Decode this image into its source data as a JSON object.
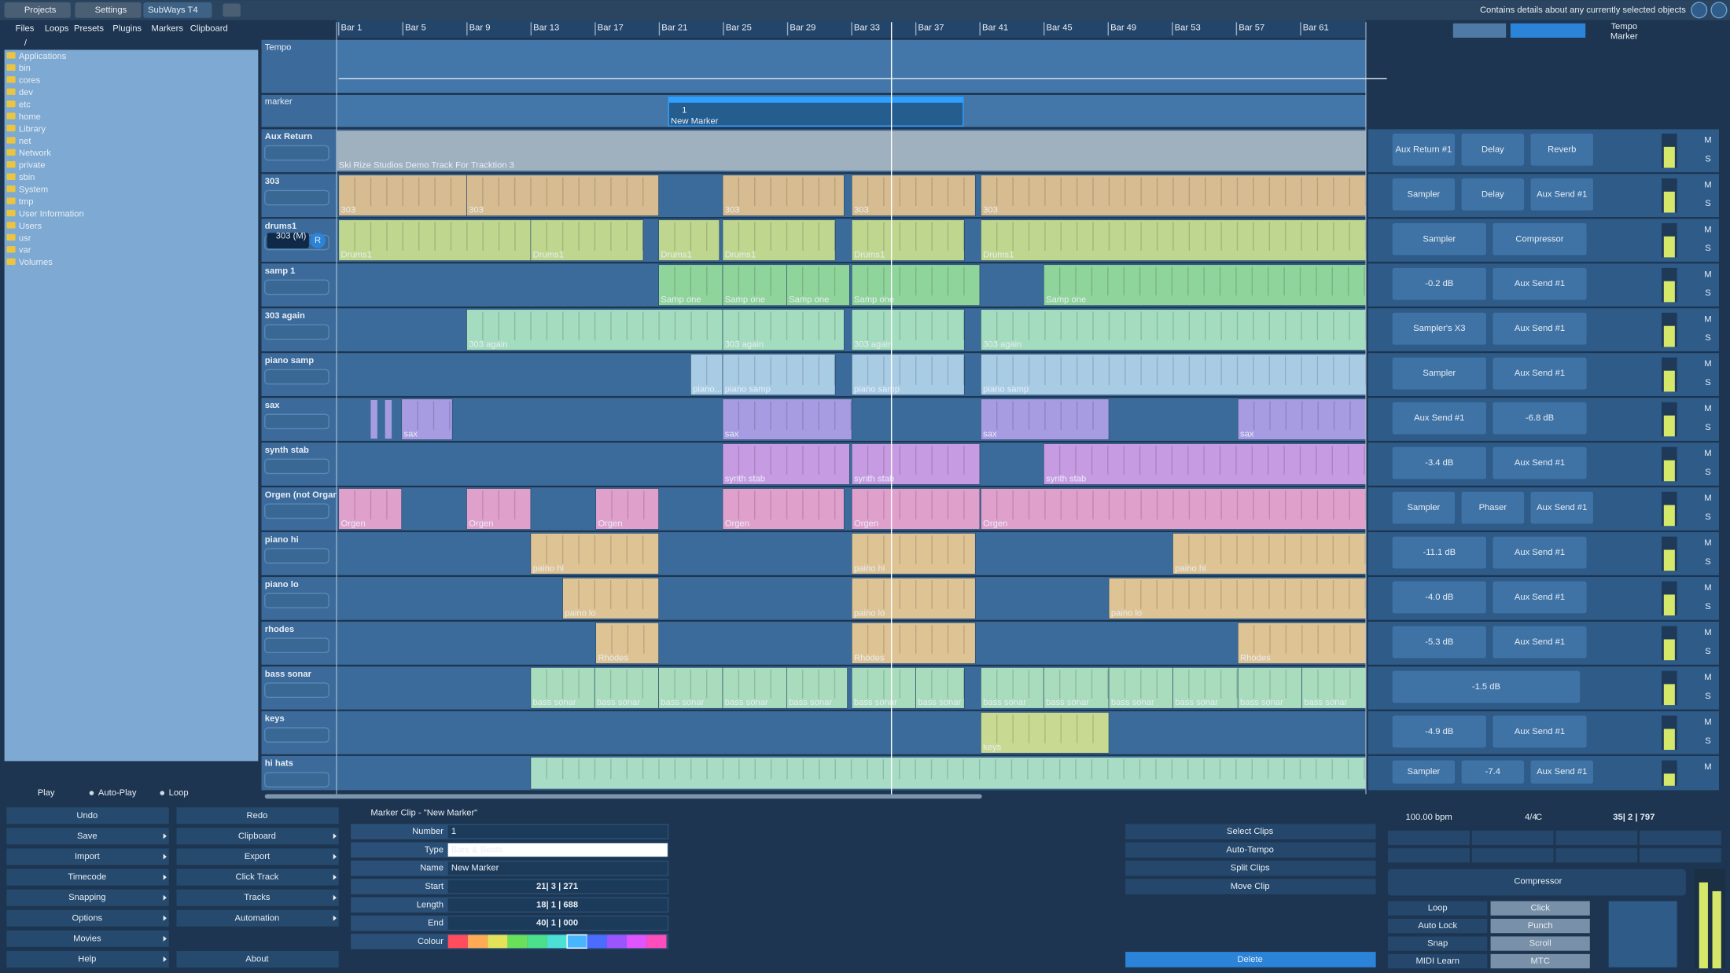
{
  "tabs": [
    "Projects",
    "Settings",
    "SubWays T4"
  ],
  "menu": [
    "Files",
    "Loops",
    "Presets",
    "Plugins",
    "Markers",
    "Clipboard"
  ],
  "status": "Contains details about any currently selected objects",
  "path": "/",
  "folders": [
    "Applications",
    "bin",
    "cores",
    "dev",
    "etc",
    "home",
    "Library",
    "net",
    "Network",
    "private",
    "sbin",
    "System",
    "tmp",
    "User Information",
    "Users",
    "usr",
    "var",
    "Volumes"
  ],
  "play_options": [
    "Play",
    "Auto-Play",
    "Loop"
  ],
  "buttons": [
    [
      "Undo",
      "Redo"
    ],
    [
      "Save",
      "Clipboard"
    ],
    [
      "Import",
      "Export"
    ],
    [
      "Timecode",
      "Click Track"
    ],
    [
      "Snapping",
      "Tracks"
    ],
    [
      "Options",
      "Automation"
    ],
    [
      "Movies"
    ],
    [
      "Help",
      "About"
    ]
  ],
  "ruler": [
    "Bar 1",
    "Bar 5",
    "Bar 9",
    "Bar 13",
    "Bar 17",
    "Bar 21",
    "Bar 25",
    "Bar 29",
    "Bar 33",
    "Bar 37",
    "Bar 41",
    "Bar 45",
    "Bar 49",
    "Bar 53",
    "Bar 57",
    "Bar 61"
  ],
  "view_toggles": [
    "Tempo",
    "Marker"
  ],
  "tempo_track": "Tempo",
  "marker_track": {
    "name": "marker",
    "number": "1",
    "clip": "New Marker"
  },
  "mute": "M",
  "solo": "S",
  "drums_meter": "303 (M)",
  "record": "R",
  "tracks": [
    {
      "name": "Aux Return",
      "clips": [
        "Ski Rize Studios Demo Track For Tracktion 3"
      ],
      "plugins": [
        "Aux Return #1",
        "Delay",
        "Reverb"
      ]
    },
    {
      "name": "303",
      "clips": [
        "303",
        "303",
        "303",
        "303",
        "303"
      ],
      "plugins": [
        "Sampler",
        "Delay",
        "Aux Send #1"
      ]
    },
    {
      "name": "drums1",
      "clips": [
        "Drums1",
        "Drums1",
        "Drums1",
        "Drums1",
        "Drums1",
        "Drums1"
      ],
      "plugins": [
        "Sampler",
        "Compressor"
      ]
    },
    {
      "name": "samp 1",
      "clips": [
        "Samp one",
        "Samp one",
        "Samp one",
        "Samp one",
        "Samp one"
      ],
      "plugins": [
        "-0.2 dB",
        "Aux Send #1"
      ]
    },
    {
      "name": "303 again",
      "clips": [
        "303 again",
        "303 again",
        "303 again",
        "303 again"
      ],
      "plugins": [
        "Sampler's X3",
        "Aux Send #1"
      ]
    },
    {
      "name": "piano samp",
      "clips": [
        "piano...",
        "piano samp",
        "piano samp",
        "piano samp"
      ],
      "plugins": [
        "Sampler",
        "Aux Send #1"
      ]
    },
    {
      "name": "sax",
      "clips": [
        "sax",
        "sax",
        "sax",
        "sax"
      ],
      "plugins": [
        "Aux Send #1",
        "-6.8 dB"
      ]
    },
    {
      "name": "synth stab",
      "clips": [
        "synth stab",
        "synth stab",
        "synth stab"
      ],
      "plugins": [
        "-3.4 dB",
        "Aux Send #1"
      ]
    },
    {
      "name": "Orgen (not Organ)",
      "clips": [
        "Orgen",
        "Orgen",
        "Orgen",
        "Orgen",
        "Orgen",
        "Orgen"
      ],
      "plugins": [
        "Sampler",
        "Phaser",
        "Aux Send #1"
      ]
    },
    {
      "name": "piano hi",
      "clips": [
        "paino hi",
        "paino hi",
        "paino hi"
      ],
      "plugins": [
        "-11.1 dB",
        "Aux Send #1"
      ]
    },
    {
      "name": "piano lo",
      "clips": [
        "paino lo",
        "paino lo",
        "paino lo"
      ],
      "plugins": [
        "-4.0 dB",
        "Aux Send #1"
      ]
    },
    {
      "name": "rhodes",
      "clips": [
        "Rhodes",
        "Rhodes",
        "Rhodes"
      ],
      "plugins": [
        "-5.3 dB",
        "Aux Send #1"
      ]
    },
    {
      "name": "bass sonar",
      "clips": [
        "bass sonar",
        "bass sonar",
        "bass sonar",
        "bass sonar",
        "bass sonar",
        "bass sonar",
        "bass sonar",
        "bass sonar",
        "bass sonar",
        "bass sonar",
        "bass sonar",
        "bass sonar",
        "bass sonar"
      ],
      "plugins": [
        "-1.5 dB"
      ]
    },
    {
      "name": "keys",
      "clips": [
        "keys"
      ],
      "plugins": [
        "-4.9 dB",
        "Aux Send #1"
      ]
    },
    {
      "name": "hi hats",
      "clips": [],
      "plugins": [
        "Sampler",
        "-7.4",
        "Aux Send #1"
      ]
    }
  ],
  "properties": {
    "title": "Marker Clip - \"New Marker\"",
    "rows": [
      [
        "Number",
        "1"
      ],
      [
        "Type",
        "Bars & Beats"
      ],
      [
        "Name",
        "New Marker"
      ],
      [
        "Start",
        "21| 3 | 271"
      ],
      [
        "Length",
        "18| 1 | 688"
      ],
      [
        "End",
        "40| 1 | 000"
      ],
      [
        "Colour"
      ]
    ]
  },
  "actions": [
    "Select Clips",
    "Auto-Tempo",
    "Split Clips",
    "Move Clip"
  ],
  "delete": "Delete",
  "transport": {
    "tempo": "100.00 bpm",
    "signature": "4/4",
    "key": "C",
    "position": "35| 2 | 797",
    "plugin": "Compressor",
    "buttons": [
      "Loop",
      "Click",
      "Auto Lock",
      "Punch",
      "Snap",
      "Scroll",
      "MIDI Learn",
      "MTC"
    ]
  }
}
